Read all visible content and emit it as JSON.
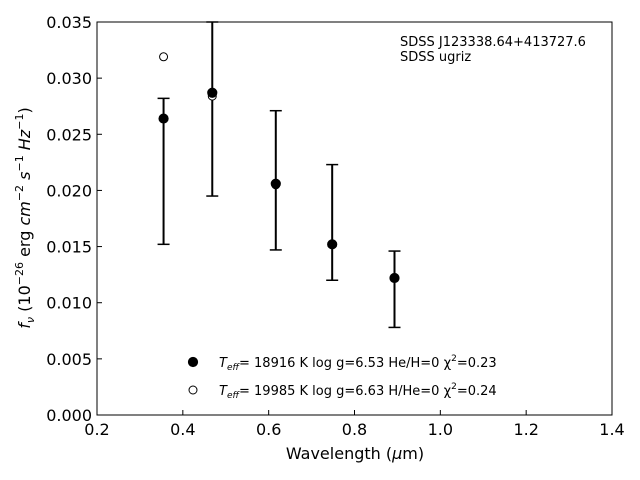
{
  "chart_data": {
    "type": "scatter",
    "xlabel": "Wavelength (μm)",
    "ylabel": "fν (10⁻²⁶ erg cm⁻² s⁻¹ Hz⁻¹)",
    "xlim": [
      0.2,
      1.4
    ],
    "ylim": [
      0.0,
      0.035
    ],
    "x_ticks": [
      0.2,
      0.4,
      0.6,
      0.8,
      1.0,
      1.2,
      1.4
    ],
    "x_tick_labels": [
      "0.2",
      "0.4",
      "0.6",
      "0.8",
      "1.0",
      "1.2",
      "1.4"
    ],
    "y_ticks": [
      0.0,
      0.005,
      0.01,
      0.015,
      0.02,
      0.025,
      0.03,
      0.035
    ],
    "y_tick_labels": [
      "0.000",
      "0.005",
      "0.010",
      "0.015",
      "0.020",
      "0.025",
      "0.030",
      "0.035"
    ],
    "grid": false,
    "annotation_lines": [
      "SDSS J123338.64+413727.6",
      "SDSS ugriz"
    ],
    "observed": {
      "x": [
        0.3551,
        0.4686,
        0.6166,
        0.748,
        0.8932
      ],
      "y": [
        0.0264,
        0.0286,
        0.0205,
        0.0152,
        0.0122
      ],
      "err_low": [
        0.0152,
        0.0195,
        0.0147,
        0.012,
        0.0078
      ],
      "err_high": [
        0.0282,
        0.035,
        0.0271,
        0.0223,
        0.0146
      ]
    },
    "series": [
      {
        "name": "T_eff= 18916 K  log g=6.53  He/H=0  χ²=0.23",
        "marker": "filled-circle",
        "x": [
          0.3551,
          0.4686,
          0.6166,
          0.748,
          0.8932
        ],
        "y": [
          0.0264,
          0.0287,
          0.0206,
          0.0152,
          0.0122
        ]
      },
      {
        "name": "T_eff= 19985 K  log g=6.63  H/He=0  χ²=0.24",
        "marker": "open-circle",
        "x": [
          0.3551,
          0.4686,
          0.6166,
          0.748,
          0.8932
        ],
        "y": [
          0.0319,
          0.0284,
          0.0205,
          0.0152,
          0.0122
        ]
      }
    ],
    "legend": [
      {
        "prefix": "T",
        "sub": "eff",
        "middle": "= 18916 K  log g=6.53  He/H=0  χ",
        "sup": "2",
        "suffix": "=0.23"
      },
      {
        "prefix": "T",
        "sub": "eff",
        "middle": "= 19985 K  log g=6.63  H/He=0  χ",
        "sup": "2",
        "suffix": "=0.24"
      }
    ],
    "legend_loc": "lower-center"
  }
}
